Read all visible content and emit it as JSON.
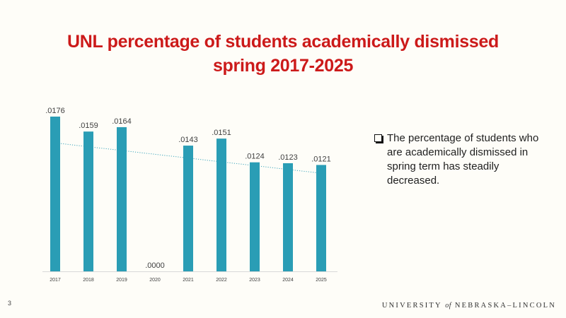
{
  "slide": {
    "title_line1": "UNL percentage of students academically dismissed",
    "title_line2": "spring 2017-2025",
    "bullet_text": "The percentage of students who are academically dismissed in spring term has steadily decreased.",
    "page_number": "3",
    "footer": {
      "university": "UNIVERSITY",
      "of": "of",
      "name": "NEBRASKA–LINCOLN"
    },
    "colors": {
      "title": "#cc1a1a",
      "bar": "#2a9db5",
      "trendline": "#2a9db5",
      "background": "#fefdf8"
    }
  },
  "chart_data": {
    "type": "bar",
    "categories": [
      "2017",
      "2018",
      "2019",
      "2020",
      "2021",
      "2022",
      "2023",
      "2024",
      "2025"
    ],
    "values": [
      0.0176,
      0.0159,
      0.0164,
      0.0,
      0.0143,
      0.0151,
      0.0124,
      0.0123,
      0.0121
    ],
    "data_labels": [
      ".0176",
      ".0159",
      ".0164",
      ".0000",
      ".0143",
      ".0151",
      ".0124",
      ".0123",
      ".0121"
    ],
    "trendline": {
      "type": "linear",
      "style": "dotted",
      "range": [
        "2017",
        "2025"
      ]
    },
    "title": "",
    "xlabel": "",
    "ylabel": "",
    "ylim": [
      0,
      0.0176
    ],
    "grid": false,
    "legend": "none"
  }
}
